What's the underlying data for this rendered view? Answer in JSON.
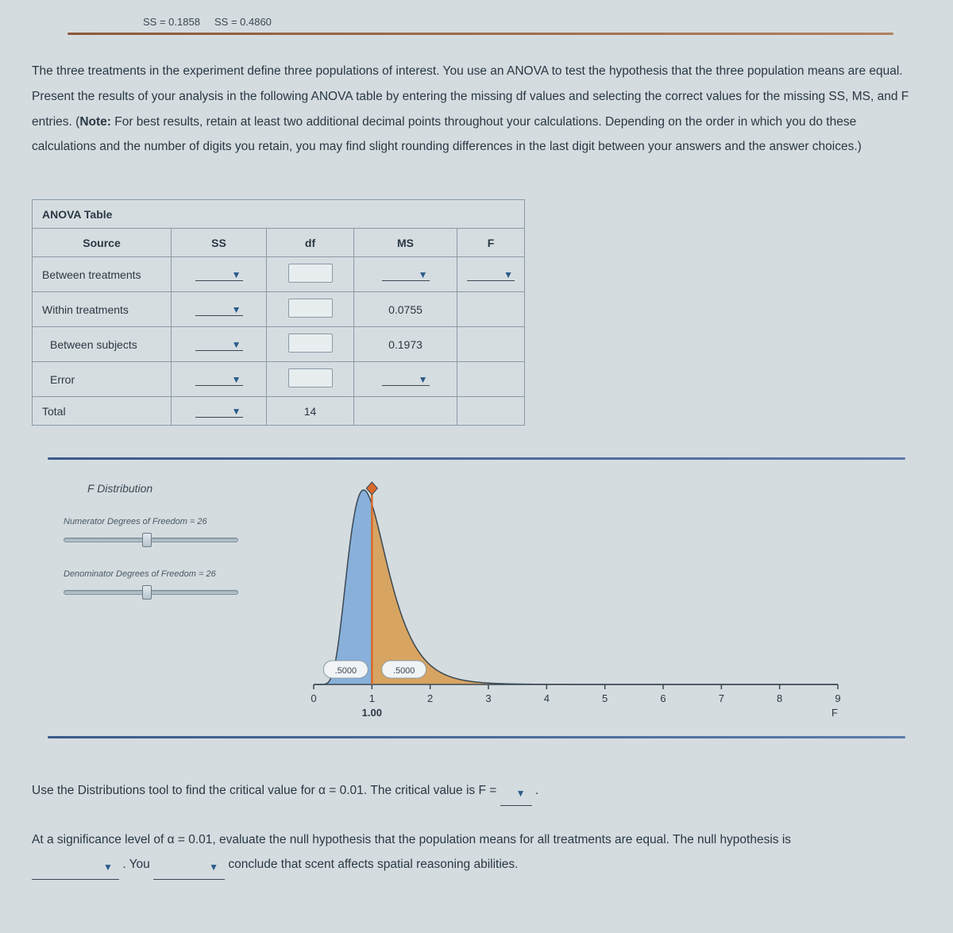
{
  "header": {
    "ss1": "SS = 0.1858",
    "ss2": "SS = 0.4860"
  },
  "instructions": "The three treatments in the experiment define three populations of interest. You use an ANOVA to test the hypothesis that the three population means are equal. Present the results of your analysis in the following ANOVA table by entering the missing df values and selecting the correct values for the missing SS, MS, and F entries. (",
  "instructions_note_label": "Note:",
  "instructions_tail": " For best results, retain at least two additional decimal points throughout your calculations. Depending on the order in which you do these calculations and the number of digits you retain, you may find slight rounding differences in the last digit between your answers and the answer choices.)",
  "table": {
    "title": "ANOVA Table",
    "headers": {
      "source": "Source",
      "ss": "SS",
      "df": "df",
      "ms": "MS",
      "f": "F"
    },
    "rows": {
      "between_treatments": "Between treatments",
      "within_treatments": "Within treatments",
      "between_subjects": "Between subjects",
      "error": "Error",
      "total": "Total"
    },
    "values": {
      "within_ms": "0.0755",
      "between_subj_ms": "0.1973",
      "total_df": "14"
    }
  },
  "dist": {
    "title": "F Distribution",
    "num_label": "Numerator Degrees of Freedom = 26",
    "den_label": "Denominator Degrees of Freedom = 26",
    "slider_pos": 0.45,
    "left_area": ".5000",
    "right_area": ".5000",
    "critical_label": "1.00",
    "axis_label": "F",
    "xlim": [
      0,
      9
    ],
    "ticks": [
      0,
      1,
      2,
      3,
      4,
      5,
      6,
      7,
      8,
      9
    ],
    "critical_x": 1.0,
    "curve_color_left": "#7aa8d8",
    "curve_color_right": "#d89a4a",
    "curve_stroke": "#3a4852",
    "marker_line": "#d86a2a",
    "bg": "#d8e0e4"
  },
  "q1": {
    "pre": "Use the Distributions tool to find the critical value for α = 0.01. The critical value is F = ",
    "post": " ."
  },
  "q2": {
    "line1_pre": "At a significance level of α = 0.01, evaluate the null hypothesis that the population means for all treatments are equal. The null hypothesis is",
    "mid1": " . You ",
    "tail": " conclude that scent affects spatial reasoning abilities."
  }
}
